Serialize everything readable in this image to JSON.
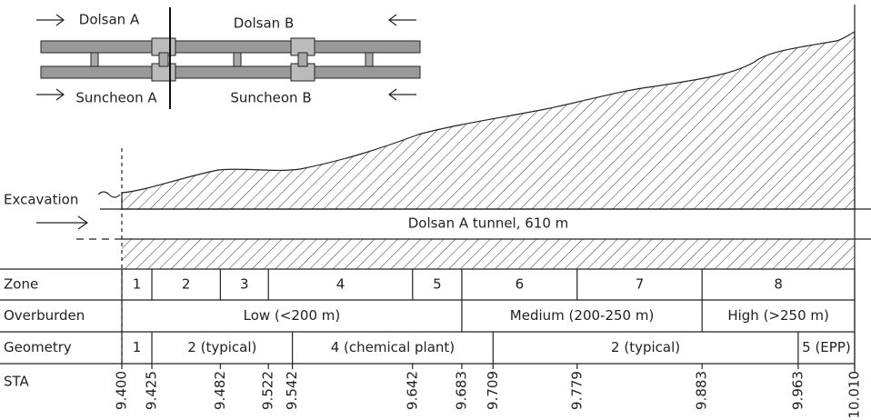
{
  "inset": {
    "labels": [
      "Dolsan A",
      "Dolsan B",
      "Suncheon A",
      "Suncheon B"
    ]
  },
  "profile": {
    "excavation": "Excavation",
    "tunnel": "Dolsan A tunnel, 610 m"
  },
  "table": {
    "row_labels": [
      "Zone",
      "Overburden",
      "Geometry",
      "STA"
    ],
    "zone": [
      "1",
      "2",
      "3",
      "4",
      "5",
      "6",
      "7",
      "8"
    ],
    "overburden": [
      "Low (<200 m)",
      "Medium (200-250 m)",
      "High (>250 m)"
    ],
    "geometry": [
      "1",
      "2 (typical)",
      "4 (chemical plant)",
      "2 (typical)",
      "5 (EPP)"
    ],
    "sta": [
      "9.400",
      "9.425",
      "9.482",
      "9.522",
      "9.542",
      "9.642",
      "9.683",
      "9.709",
      "9.779",
      "9.883",
      "9.963",
      "10.010"
    ]
  }
}
